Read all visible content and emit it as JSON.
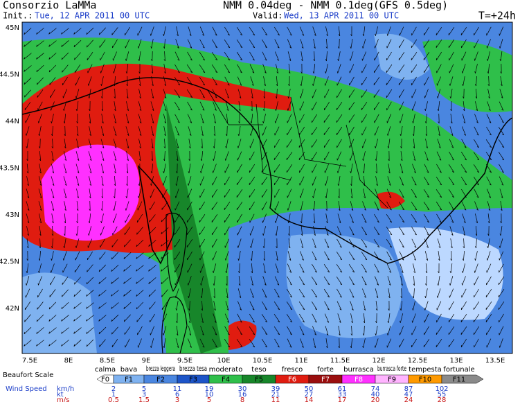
{
  "header": {
    "title": "Consorzio LaMMa",
    "model": "NMM 0.04deg - NMM 0.1deg(GFS 0.5deg)",
    "init_label": "Init.:",
    "init": "Tue, 12 APR 2011  00 UTC",
    "valid_label": "Valid:",
    "valid": "Wed, 13 APR 2011  00 UTC",
    "lead": "T=+24h"
  },
  "map": {
    "lat_labels": [
      "45N",
      "44.5N",
      "44N",
      "43.5N",
      "43N",
      "42.5N",
      "42N"
    ],
    "lon_labels": [
      "7.5E",
      "8E",
      "8.5E",
      "9E",
      "9.5E",
      "10E",
      "10.5E",
      "11E",
      "11.5E",
      "12E",
      "12.5E",
      "13E",
      "13.5E"
    ]
  },
  "legend": {
    "title": "Beaufort Scale",
    "classes": [
      {
        "name": "calma",
        "code": "F0",
        "color": "#ffffff"
      },
      {
        "name": "bava",
        "code": "F1",
        "color": "#7fb2f0"
      },
      {
        "name": "brezza leggera",
        "code": "F2",
        "color": "#4a86e0"
      },
      {
        "name": "brezza tesa",
        "code": "F3",
        "color": "#1d55c8"
      },
      {
        "name": "moderato",
        "code": "F4",
        "color": "#2fbf4a"
      },
      {
        "name": "teso",
        "code": "F5",
        "color": "#17862a"
      },
      {
        "name": "fresco",
        "code": "F6",
        "color": "#e01c10"
      },
      {
        "name": "forte",
        "code": "F7",
        "color": "#9a0e0e"
      },
      {
        "name": "burrasca",
        "code": "F8",
        "color": "#ff30ff"
      },
      {
        "name": "burrasca forte",
        "code": "F9",
        "color": "#ffb4ff"
      },
      {
        "name": "tempesta",
        "code": "F10",
        "color": "#ff9a00"
      },
      {
        "name": "fortunale",
        "code": "F11",
        "color": "#8a8a8a"
      }
    ],
    "speed_label": "Wind Speed",
    "units": [
      "km/h",
      "kt",
      "m/s"
    ],
    "speeds": [
      [
        "2",
        "5",
        "11",
        "19",
        "30",
        "39",
        "50",
        "61",
        "74",
        "87",
        "102"
      ],
      [
        "1",
        "3",
        "6",
        "10",
        "16",
        "21",
        "27",
        "33",
        "40",
        "47",
        "55"
      ],
      [
        "0.5",
        "1.5",
        "3",
        "5",
        "8",
        "11",
        "14",
        "17",
        "20",
        "24",
        "28"
      ]
    ]
  }
}
